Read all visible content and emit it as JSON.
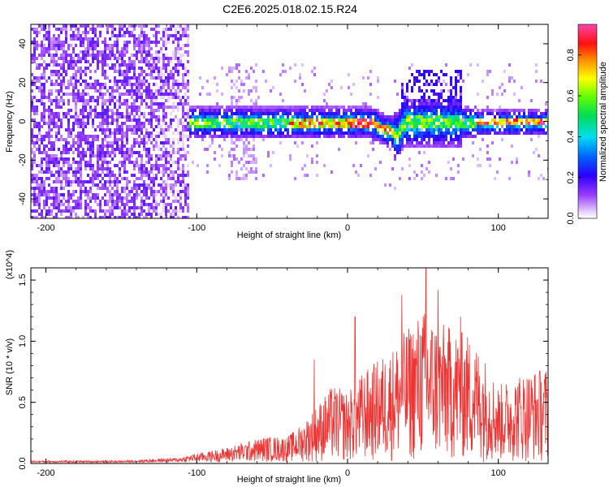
{
  "title": "C2E6.2025.018.02.15.R24",
  "chart_data": [
    {
      "type": "heatmap",
      "xlabel": "Height of straight line (km)",
      "ylabel": "Frequency (Hz)",
      "xlim": [
        -210,
        133
      ],
      "ylim": [
        -50,
        50
      ],
      "xticks": [
        "-200",
        "-100",
        "0",
        "100"
      ],
      "xtick_values": [
        -200,
        -100,
        0,
        100
      ],
      "yticks": [
        "-40",
        "-20",
        "0",
        "20",
        "40"
      ],
      "ytick_values": [
        -40,
        -20,
        0,
        20,
        40
      ],
      "colorbar": {
        "label": "Normalized spectral amplitude",
        "range": [
          0,
          0.95
        ],
        "ticks": [
          "0.0",
          "0.2",
          "0.4",
          "0.6",
          "0.8"
        ],
        "tick_values": [
          0,
          0.2,
          0.4,
          0.6,
          0.8
        ]
      },
      "regions": [
        {
          "x_range": [
            -210,
            -105
          ],
          "description_level": 0.1,
          "freq_spread": 50
        },
        {
          "x_range": [
            -105,
            133
          ],
          "description_level": 0.5,
          "freq_spread": 8
        }
      ],
      "grid": false
    },
    {
      "type": "line",
      "xlabel": "Height of straight line (km)",
      "ylabel": "SNR (10 * v/v)",
      "y_multiplier": "(x10^4)",
      "xlim": [
        -210,
        133
      ],
      "ylim": [
        0,
        1.6
      ],
      "xticks": [
        "-200",
        "-100",
        "0",
        "100"
      ],
      "xtick_values": [
        -200,
        -100,
        0,
        100
      ],
      "yticks": [
        "0.0",
        "0.5",
        "1.0",
        "1.5"
      ],
      "ytick_values": [
        0,
        0.5,
        1.0,
        1.5
      ],
      "color": "#ee3333",
      "envelope": [
        {
          "x": -210,
          "y": 0.02
        },
        {
          "x": -150,
          "y": 0.02
        },
        {
          "x": -110,
          "y": 0.04
        },
        {
          "x": -100,
          "y": 0.07
        },
        {
          "x": -85,
          "y": 0.1
        },
        {
          "x": -70,
          "y": 0.15
        },
        {
          "x": -55,
          "y": 0.2
        },
        {
          "x": -40,
          "y": 0.2
        },
        {
          "x": -30,
          "y": 0.3
        },
        {
          "x": -20,
          "y": 0.45
        },
        {
          "x": -10,
          "y": 0.6
        },
        {
          "x": 0,
          "y": 0.55
        },
        {
          "x": 10,
          "y": 0.7
        },
        {
          "x": 20,
          "y": 0.8
        },
        {
          "x": 30,
          "y": 0.9
        },
        {
          "x": 40,
          "y": 1.05
        },
        {
          "x": 50,
          "y": 1.2
        },
        {
          "x": 60,
          "y": 1.1
        },
        {
          "x": 70,
          "y": 1.05
        },
        {
          "x": 80,
          "y": 1.0
        },
        {
          "x": 90,
          "y": 0.85
        },
        {
          "x": 100,
          "y": 0.6
        },
        {
          "x": 115,
          "y": 0.7
        },
        {
          "x": 133,
          "y": 0.75
        }
      ],
      "peaks": [
        {
          "x": -22,
          "y": 0.85
        },
        {
          "x": 5,
          "y": 1.2
        },
        {
          "x": 36,
          "y": 1.38
        },
        {
          "x": 52,
          "y": 1.6
        },
        {
          "x": 60,
          "y": 1.42
        },
        {
          "x": 75,
          "y": 1.2
        }
      ],
      "grid": false
    }
  ]
}
